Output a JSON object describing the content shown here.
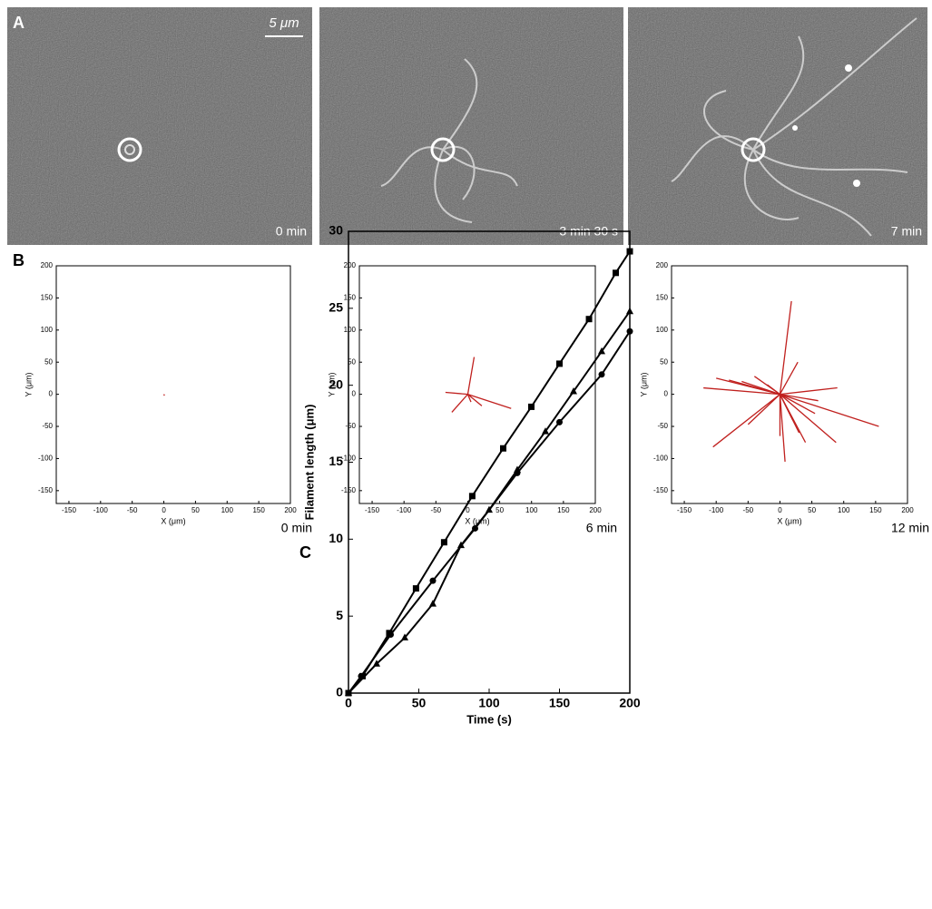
{
  "panels": {
    "A": {
      "label": "A",
      "scale_bar": "5 μm",
      "images": [
        {
          "time": "0 min"
        },
        {
          "time": "3 min 30 s"
        },
        {
          "time": "7 min"
        }
      ]
    },
    "B": {
      "label": "B"
    },
    "C": {
      "label": "C"
    }
  },
  "chart_data": [
    {
      "type": "segments",
      "x_label": "X (μm)",
      "y_label": "Y (μm)",
      "time": "0 min",
      "color": "#c0201e",
      "x": [
        1
      ],
      "y": [
        -2
      ],
      "xlim": [
        -170,
        200
      ],
      "ylim": [
        -170,
        200
      ],
      "xticks": [
        -150,
        -100,
        -50,
        0,
        50,
        100,
        150,
        200
      ],
      "yticks": [
        -150,
        -100,
        -50,
        0,
        50,
        100,
        150,
        200
      ]
    },
    {
      "type": "segments",
      "x_label": "X (μm)",
      "y_label": "Y (μm)",
      "time": "6 min",
      "color": "#c0201e",
      "x": [
        10,
        -35,
        -25,
        22,
        68,
        5
      ],
      "y": [
        58,
        3,
        -28,
        -18,
        -22,
        -12
      ],
      "xlim": [
        -170,
        200
      ],
      "ylim": [
        -170,
        200
      ],
      "xticks": [
        -150,
        -100,
        -50,
        0,
        50,
        100,
        150,
        200
      ],
      "yticks": [
        -150,
        -100,
        -50,
        0,
        50,
        100,
        150,
        200
      ]
    },
    {
      "type": "segments",
      "x_label": "X (μm)",
      "y_label": "Y (μm)",
      "time": "12 min",
      "color": "#c0201e",
      "x": [
        18,
        28,
        -120,
        -100,
        -80,
        -60,
        -105,
        -50,
        -40,
        0,
        8,
        40,
        55,
        90,
        155,
        88,
        30,
        20,
        -20,
        60
      ],
      "y": [
        145,
        50,
        10,
        25,
        22,
        20,
        -82,
        -47,
        28,
        -65,
        -105,
        -75,
        -30,
        10,
        -50,
        -75,
        -60,
        -40,
        15,
        -10
      ],
      "xlim": [
        -170,
        200
      ],
      "ylim": [
        -170,
        200
      ],
      "xticks": [
        -150,
        -100,
        -50,
        0,
        50,
        100,
        150,
        200
      ],
      "yticks": [
        -150,
        -100,
        -50,
        0,
        50,
        100,
        150,
        200
      ]
    },
    {
      "type": "line",
      "x_label": "Time (s)",
      "y_label": "Filament length (μm)",
      "series": [
        {
          "marker": "square",
          "color": "#000000",
          "x": [
            0,
            10,
            29,
            48,
            68,
            88,
            110,
            130,
            150,
            171,
            190,
            200
          ],
          "values": [
            0,
            1.1,
            3.9,
            6.8,
            9.8,
            12.8,
            15.9,
            18.6,
            21.4,
            24.3,
            27.3,
            28.7
          ]
        },
        {
          "marker": "triangle",
          "color": "#000000",
          "x": [
            0,
            20,
            40,
            60,
            80,
            100,
            120,
            140,
            160,
            180,
            200
          ],
          "values": [
            0,
            1.9,
            3.6,
            5.8,
            9.6,
            11.9,
            14.5,
            17.0,
            19.6,
            22.2,
            24.8
          ]
        },
        {
          "marker": "circle",
          "color": "#000000",
          "x": [
            0,
            9,
            30,
            60,
            90,
            120,
            150,
            180,
            200
          ],
          "values": [
            0,
            1.1,
            3.8,
            7.3,
            10.7,
            14.3,
            17.6,
            20.7,
            23.5
          ]
        }
      ],
      "xlim": [
        0,
        200
      ],
      "ylim": [
        0,
        30
      ],
      "xticks": [
        0,
        50,
        100,
        150,
        200
      ],
      "yticks": [
        0,
        5,
        10,
        15,
        20,
        25,
        30
      ]
    }
  ]
}
